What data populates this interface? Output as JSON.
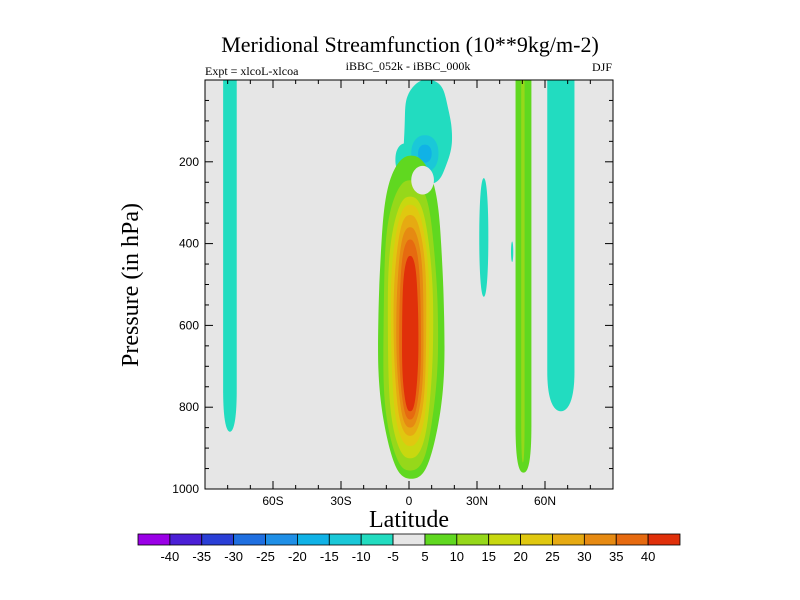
{
  "chart_data": {
    "type": "heatmap",
    "subtype": "filled-contour",
    "title": "Meridional Streamfunction (10**9kg/m-2)",
    "left_subtitle": "Expt = xlcoL-xlcoa",
    "center_subtitle": "iBBC_052k - iBBC_000k",
    "right_subtitle": "DJF",
    "xlabel": "Latitude",
    "ylabel": "Pressure (in hPa)",
    "xlim": [
      -90,
      90
    ],
    "ylim": [
      1000,
      0
    ],
    "x_ticks": [
      {
        "value": -60,
        "label": "60S"
      },
      {
        "value": -30,
        "label": "30S"
      },
      {
        "value": 0,
        "label": "0"
      },
      {
        "value": 30,
        "label": "30N"
      },
      {
        "value": 60,
        "label": "60N"
      }
    ],
    "y_ticks": [
      {
        "value": 200,
        "label": "200"
      },
      {
        "value": 400,
        "label": "400"
      },
      {
        "value": 600,
        "label": "600"
      },
      {
        "value": 800,
        "label": "800"
      },
      {
        "value": 1000,
        "label": "1000"
      }
    ],
    "background_color": "#e6e6e6",
    "contour_levels": [
      -40,
      -35,
      -30,
      -25,
      -20,
      -15,
      -10,
      -5,
      5,
      10,
      15,
      20,
      25,
      30,
      35,
      40
    ],
    "colorbar": {
      "labels": [
        "-40",
        "-35",
        "-30",
        "-25",
        "-20",
        "-15",
        "-10",
        "-5",
        "5",
        "10",
        "15",
        "20",
        "25",
        "30",
        "35",
        "40"
      ],
      "colors": [
        "#9a00e6",
        "#4b1fd6",
        "#2a3fd6",
        "#1f6fe0",
        "#1f8fe6",
        "#10b2e6",
        "#1ac8d8",
        "#22dcc0",
        "#e6e6e6",
        "#60d820",
        "#96d81a",
        "#c8d810",
        "#e0c810",
        "#e6aa12",
        "#e68a12",
        "#e66a10",
        "#e0300a"
      ]
    },
    "features": [
      {
        "name": "tropical positive cell",
        "lat_range": [
          -12,
          14
        ],
        "pressure_range": [
          180,
          975
        ],
        "peak_value": 40,
        "peak_location": {
          "lat": 0,
          "pressure": 650
        }
      },
      {
        "name": "upper tropical negative cell",
        "lat_range": [
          -3,
          18
        ],
        "pressure_range": [
          40,
          280
        ],
        "min_value": -15,
        "min_location": {
          "lat": 7,
          "pressure": 180
        }
      },
      {
        "name": "southern high-latitude weak negative band",
        "lat_range": [
          -82,
          -76
        ],
        "pressure_range": [
          0,
          860
        ],
        "value": -5
      },
      {
        "name": "northern subtropical weak negative sliver",
        "lat_range": [
          31,
          35
        ],
        "pressure_range": [
          240,
          530
        ],
        "value": -5
      },
      {
        "name": "northern midlatitude weak positive band",
        "lat_range": [
          47,
          54
        ],
        "pressure_range": [
          0,
          960
        ],
        "value": 5
      },
      {
        "name": "northern high-latitude weak negative band",
        "lat_range": [
          61,
          73
        ],
        "pressure_range": [
          0,
          810
        ],
        "value": -5
      }
    ]
  }
}
